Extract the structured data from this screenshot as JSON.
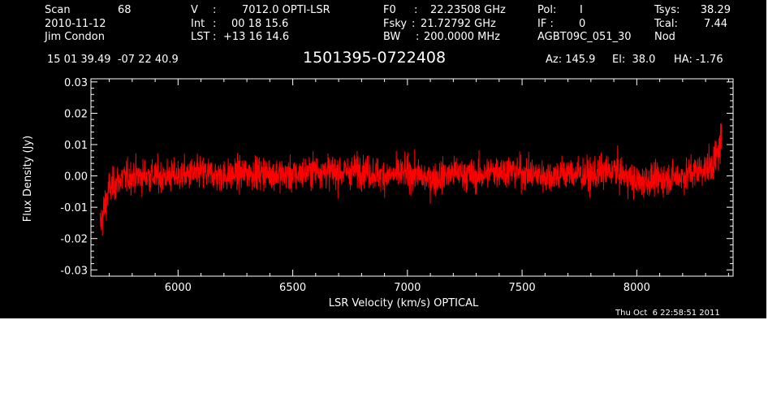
{
  "header": {
    "scan_label": "Scan",
    "scan_value": "68",
    "date": "2010-11-12",
    "observer": "Jim Condon",
    "v_label": "V",
    "v_value": "7012.0 OPTI-LSR",
    "int_label": "Int",
    "int_value": "00 18 15.6",
    "lst_label": "LST",
    "lst_value": "+13 16 14.6",
    "f0_label": "F0",
    "f0_value": "22.23508 GHz",
    "fsky_label": "Fsky",
    "fsky_value": "21.72792 GHz",
    "bw_label": "BW",
    "bw_value": "200.0000 MHz",
    "pol_label": "Pol:",
    "pol_value": "I",
    "if_label": "IF :",
    "if_value": "0",
    "project": "AGBT09C_051_30",
    "tsys_label": "Tsys:",
    "tsys_value": "38.29",
    "tcal_label": "Tcal:",
    "tcal_value": "7.44",
    "mode": "Nod",
    "coords": "15 01 39.49  -07 22 40.9",
    "source": "1501395-0722408",
    "az": "Az: 145.9",
    "el": "El:  38.0",
    "ha": "HA: -1.76",
    "timestamp": "Thu Oct  6 22:58:51 2011"
  },
  "chart_data": {
    "type": "line",
    "xlabel": "LSR Velocity (km/s) OPTICAL",
    "ylabel": "Flux Density (Jy)",
    "xlim": [
      5620,
      8420
    ],
    "ylim": [
      -0.032,
      0.031
    ],
    "xticks": [
      6000,
      6500,
      7000,
      7500,
      8000
    ],
    "xtick_labels": [
      "6000",
      "6500",
      "7000",
      "7500",
      "8000"
    ],
    "yticks": [
      -0.03,
      -0.02,
      -0.01,
      0.0,
      0.01,
      0.02,
      0.03
    ],
    "ytick_labels": [
      "-0.03",
      "-0.02",
      "-0.01",
      "0.00",
      "0.01",
      "0.02",
      "0.03"
    ],
    "grid": false,
    "colors": {
      "background": "#000000",
      "axes": "#ffffff",
      "series": "#ff0000"
    },
    "series": [
      {
        "x": [
          5660,
          5680,
          5700,
          5750,
          5800,
          5900,
          6000,
          6100,
          6200,
          6300,
          6400,
          6500,
          6600,
          6700,
          6800,
          6900,
          7000,
          7100,
          7200,
          7300,
          7400,
          7500,
          7600,
          7700,
          7800,
          7900,
          8000,
          8100,
          8200,
          8280,
          8320,
          8350,
          8370
        ],
        "y": [
          -0.016,
          -0.01,
          -0.004,
          -0.001,
          0.0,
          0.0,
          0.0,
          0.001,
          0.0,
          0.001,
          0.001,
          0.0,
          0.002,
          0.001,
          0.002,
          0.0,
          0.001,
          -0.001,
          0.001,
          0.0,
          0.002,
          0.001,
          0.0,
          0.001,
          0.0,
          0.002,
          -0.002,
          -0.001,
          0.0,
          0.002,
          0.003,
          0.006,
          0.012
        ]
      }
    ]
  }
}
